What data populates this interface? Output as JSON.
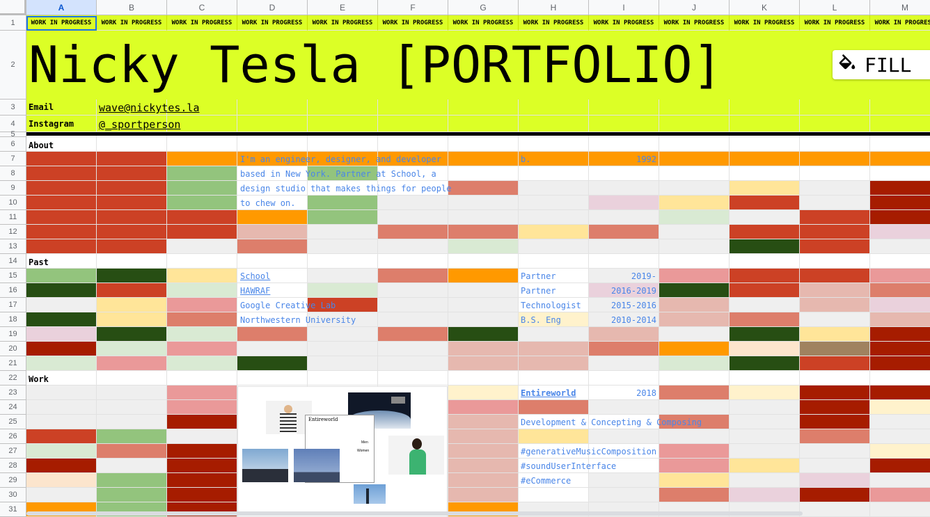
{
  "columns": [
    "A",
    "B",
    "C",
    "D",
    "E",
    "F",
    "G",
    "H",
    "I",
    "J",
    "K",
    "L",
    "M"
  ],
  "rows": [
    "1",
    "2",
    "3",
    "4",
    "5",
    "6",
    "7",
    "8",
    "9",
    "10",
    "11",
    "12",
    "13",
    "14",
    "15",
    "16",
    "17",
    "18",
    "19",
    "20",
    "21",
    "22",
    "23",
    "24",
    "25",
    "26",
    "27",
    "28",
    "29",
    "30",
    "31"
  ],
  "selected_column": "A",
  "banner_text": "WORK IN PROGRESS",
  "title": "Nicky Tesla [PORTFOLIO]",
  "fill_button": {
    "label": "FILL",
    "icon": "paint-bucket-icon"
  },
  "contact": {
    "email_label": "Email",
    "email_value": "wave@nickytes.la",
    "instagram_label": "Instagram",
    "instagram_value": "@_sportperson"
  },
  "sections": {
    "about": "About",
    "past": "Past",
    "work": "Work"
  },
  "about": {
    "lines": [
      "I'm an engineer, designer, and developer",
      "based in New York. Partner at School, a",
      "design studio that makes things for people",
      "to chew on."
    ],
    "birth_label": "b.",
    "birth_year": "1992"
  },
  "past": [
    {
      "org": "School",
      "role": "Partner",
      "years": "2019-",
      "linked": true
    },
    {
      "org": "HAWRAF",
      "role": "Partner",
      "years": "2016-2019",
      "linked": true
    },
    {
      "org": "Google Creative Lab",
      "role": "Technologist",
      "years": "2015-2016",
      "linked": false
    },
    {
      "org": "Northwestern University",
      "role": "B.S. Eng",
      "years": "2010-2014",
      "linked": false
    }
  ],
  "work": {
    "project": "Entireworld",
    "year": "2018",
    "description": "Development & Concepting & Composing",
    "tags": [
      "#generativeMusicComposition",
      "#soundUserInterface",
      "#eCommerce"
    ],
    "collage": {
      "brand": "Entireworld",
      "menu": [
        "Men",
        "Women"
      ]
    }
  },
  "colors": {
    "lime": "#dcff26",
    "red": "#cc4125",
    "darkred": "#a61c00",
    "orange": "#ff9900",
    "green": "#93c47d",
    "darkgreen": "#274e13",
    "salmon": "#dd7e6b",
    "pink": "#ea9999",
    "lightpink": "#e6b8af",
    "mauve": "#ead1dc",
    "yellow": "#ffe599",
    "cream": "#fff2cc",
    "peach": "#fce5cd",
    "lightgreen": "#d9ead3",
    "gray": "#efefef",
    "brown": "#a0825f",
    "accent_blue": "#4a86e8"
  }
}
